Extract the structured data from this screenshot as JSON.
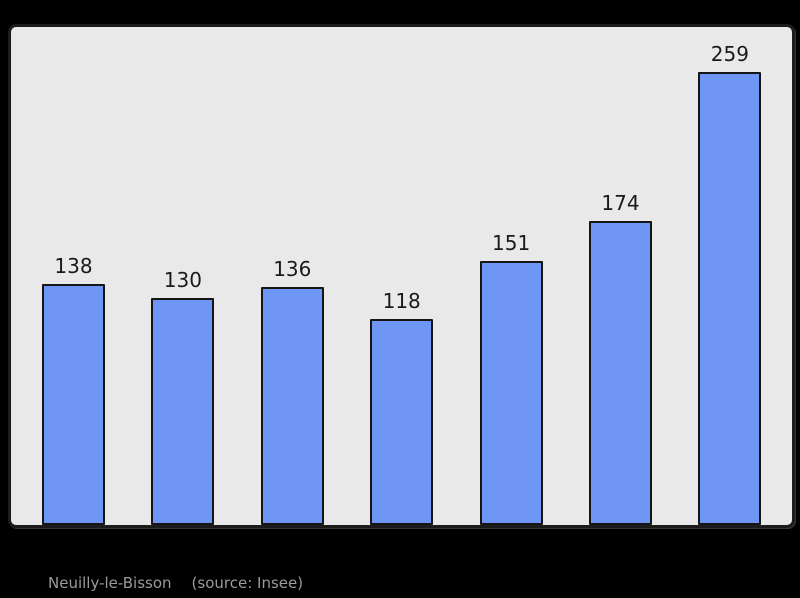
{
  "colors": {
    "page_bg": "#000000",
    "panel_bg": "#e9e9e9",
    "panel_border": "#1c1c1c",
    "bar_fill": "#7096f5",
    "bar_stroke": "#151515",
    "value_label_color": "#1a1a1a",
    "caption_color": "#9a9a9a"
  },
  "chart_data": {
    "type": "bar",
    "categories": [
      "",
      "",
      "",
      "",
      "",
      "",
      ""
    ],
    "values": [
      138,
      130,
      136,
      118,
      151,
      174,
      259
    ],
    "title": "",
    "xlabel": "",
    "ylabel": "",
    "ylim": [
      0,
      285
    ],
    "grid": false,
    "legend": false,
    "value_labels_shown": true
  },
  "caption": {
    "name": "Neuilly-le-Bisson",
    "source": "(source: Insee)"
  }
}
